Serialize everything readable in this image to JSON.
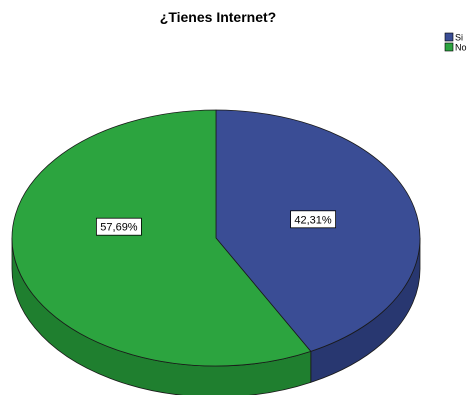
{
  "chart_data": {
    "type": "pie",
    "title": "¿Tienes Internet?",
    "categories": [
      "Si",
      "No"
    ],
    "values": [
      42.31,
      57.69
    ],
    "data_labels": [
      "42,31%",
      "57,69%"
    ],
    "colors": [
      "#3a4d95",
      "#2ca43f"
    ],
    "side_colors": [
      "#283770",
      "#1f7f2f"
    ],
    "legend_position": "top-right",
    "style": "3d"
  }
}
